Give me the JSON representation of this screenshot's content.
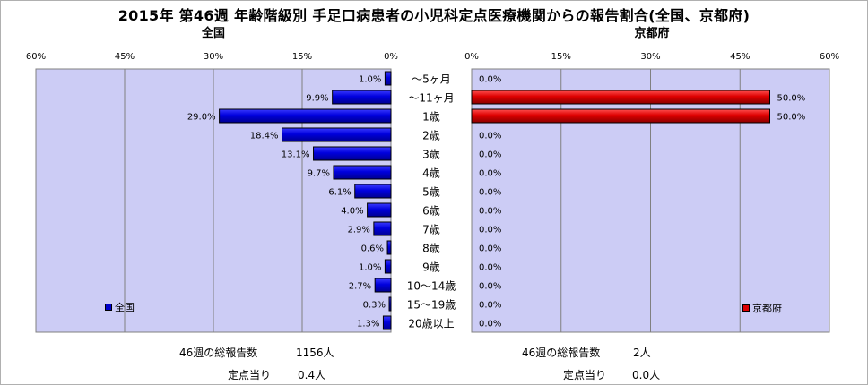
{
  "title": "2015年 第46週 年齢階級別 手足口病患者の小児科定点医療機関からの報告割合(全国、京都府)",
  "chart_data": [
    {
      "type": "bar",
      "orientation": "horizontal",
      "direction": "right-to-left",
      "title": "全国",
      "categories": [
        "～5ヶ月",
        "～11ヶ月",
        "1歳",
        "2歳",
        "3歳",
        "4歳",
        "5歳",
        "6歳",
        "7歳",
        "8歳",
        "9歳",
        "10～14歳",
        "15～19歳",
        "20歳以上"
      ],
      "series": [
        {
          "name": "全国",
          "values": [
            1.0,
            9.9,
            29.0,
            18.4,
            13.1,
            9.7,
            6.1,
            4.0,
            2.9,
            0.6,
            1.0,
            2.7,
            0.3,
            1.3
          ],
          "labels": [
            "1.0%",
            "9.9%",
            "29.0%",
            "18.4%",
            "13.1%",
            "9.7%",
            "6.1%",
            "4.0%",
            "2.9%",
            "0.6%",
            "1.0%",
            "2.7%",
            "0.3%",
            "1.3%"
          ],
          "color": "#0000cc"
        }
      ],
      "xlim": [
        0,
        60
      ],
      "xticks": [
        "60%",
        "45%",
        "30%",
        "15%",
        "0%"
      ],
      "grid": true,
      "plot_background": "#ccccf5",
      "legend": "bottom-left"
    },
    {
      "type": "bar",
      "orientation": "horizontal",
      "direction": "left-to-right",
      "title": "京都府",
      "categories": [
        "～5ヶ月",
        "～11ヶ月",
        "1歳",
        "2歳",
        "3歳",
        "4歳",
        "5歳",
        "6歳",
        "7歳",
        "8歳",
        "9歳",
        "10～14歳",
        "15～19歳",
        "20歳以上"
      ],
      "series": [
        {
          "name": "京都府",
          "values": [
            0.0,
            50.0,
            50.0,
            0.0,
            0.0,
            0.0,
            0.0,
            0.0,
            0.0,
            0.0,
            0.0,
            0.0,
            0.0,
            0.0
          ],
          "labels": [
            "0.0%",
            "50.0%",
            "50.0%",
            "0.0%",
            "0.0%",
            "0.0%",
            "0.0%",
            "0.0%",
            "0.0%",
            "0.0%",
            "0.0%",
            "0.0%",
            "0.0%",
            "0.0%"
          ],
          "color": "#dd0000"
        }
      ],
      "xlim": [
        0,
        60
      ],
      "xticks": [
        "0%",
        "15%",
        "30%",
        "45%",
        "60%"
      ],
      "grid": true,
      "plot_background": "#ccccf5",
      "legend": "bottom-right"
    }
  ],
  "footer": {
    "national_total_label": "46週の総報告数",
    "national_total_value": "1156人",
    "national_per_site_label": "定点当り",
    "national_per_site_value": "0.4人",
    "kyoto_total_label": "46週の総報告数",
    "kyoto_total_value": "2人",
    "kyoto_per_site_label": "定点当り",
    "kyoto_per_site_value": "0.0人"
  }
}
